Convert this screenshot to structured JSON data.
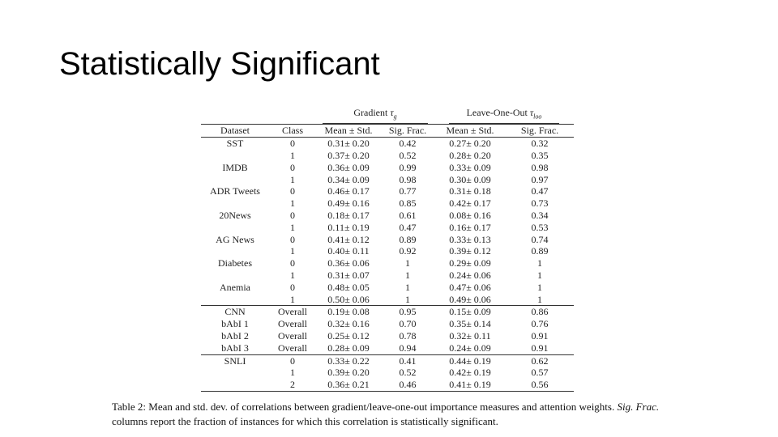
{
  "slide": {
    "title": "Statistically Significant"
  },
  "table": {
    "group_headers": {
      "gradient": "Gradient",
      "gradient_symbol": "τ",
      "gradient_sub": "g",
      "loo": "Leave-One-Out",
      "loo_symbol": "τ",
      "loo_sub": "loo"
    },
    "columns": [
      "Dataset",
      "Class",
      "Mean ± Std.",
      "Sig. Frac.",
      "Mean ± Std.",
      "Sig. Frac."
    ],
    "sections": [
      {
        "rows": [
          [
            "SST",
            "0",
            "0.31± 0.20",
            "0.42",
            "0.27± 0.20",
            "0.32"
          ],
          [
            "",
            "1",
            "0.37± 0.20",
            "0.52",
            "0.28± 0.20",
            "0.35"
          ],
          [
            "IMDB",
            "0",
            "0.36± 0.09",
            "0.99",
            "0.33± 0.09",
            "0.98"
          ],
          [
            "",
            "1",
            "0.34± 0.09",
            "0.98",
            "0.30± 0.09",
            "0.97"
          ],
          [
            "ADR Tweets",
            "0",
            "0.46± 0.17",
            "0.77",
            "0.31± 0.18",
            "0.47"
          ],
          [
            "",
            "1",
            "0.49± 0.16",
            "0.85",
            "0.42± 0.17",
            "0.73"
          ],
          [
            "20News",
            "0",
            "0.18± 0.17",
            "0.61",
            "0.08± 0.16",
            "0.34"
          ],
          [
            "",
            "1",
            "0.11± 0.19",
            "0.47",
            "0.16± 0.17",
            "0.53"
          ],
          [
            "AG News",
            "0",
            "0.41± 0.12",
            "0.89",
            "0.33± 0.13",
            "0.74"
          ],
          [
            "",
            "1",
            "0.40± 0.11",
            "0.92",
            "0.39± 0.12",
            "0.89"
          ],
          [
            "Diabetes",
            "0",
            "0.36± 0.06",
            "1",
            "0.29± 0.09",
            "1"
          ],
          [
            "",
            "1",
            "0.31± 0.07",
            "1",
            "0.24± 0.06",
            "1"
          ],
          [
            "Anemia",
            "0",
            "0.48± 0.05",
            "1",
            "0.47± 0.06",
            "1"
          ],
          [
            "",
            "1",
            "0.50± 0.06",
            "1",
            "0.49± 0.06",
            "1"
          ]
        ]
      },
      {
        "rows": [
          [
            "CNN",
            "Overall",
            "0.19± 0.08",
            "0.95",
            "0.15± 0.09",
            "0.86"
          ],
          [
            "bAbI 1",
            "Overall",
            "0.32± 0.16",
            "0.70",
            "0.35± 0.14",
            "0.76"
          ],
          [
            "bAbI 2",
            "Overall",
            "0.25± 0.12",
            "0.78",
            "0.32± 0.11",
            "0.91"
          ],
          [
            "bAbI 3",
            "Overall",
            "0.28± 0.09",
            "0.94",
            "0.24± 0.09",
            "0.91"
          ]
        ]
      },
      {
        "rows": [
          [
            "SNLI",
            "0",
            "0.33± 0.22",
            "0.41",
            "0.44± 0.19",
            "0.62"
          ],
          [
            "",
            "1",
            "0.39± 0.20",
            "0.52",
            "0.42± 0.19",
            "0.57"
          ],
          [
            "",
            "2",
            "0.36± 0.21",
            "0.46",
            "0.41± 0.19",
            "0.56"
          ]
        ]
      }
    ]
  },
  "caption": {
    "part1": "Table 2:  Mean and std.  dev.  of correlations between gradient/leave-one-out importance measures and attention weights. ",
    "italic": "Sig. Frac.",
    "part2": " columns report the fraction of instances for which this correlation is statistically significant."
  }
}
